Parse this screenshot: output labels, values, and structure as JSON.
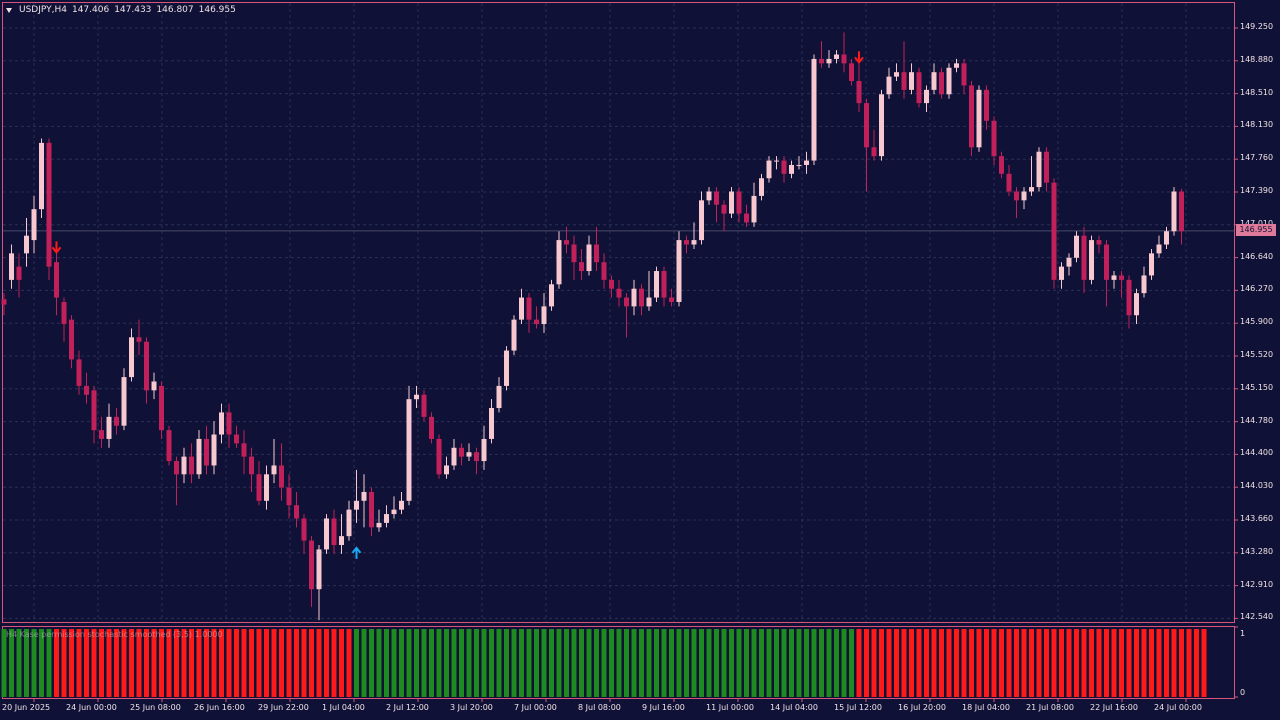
{
  "header": {
    "symbol": "USDJPY,H4",
    "open": "147.406",
    "high": "147.433",
    "low": "146.807",
    "close": "146.955"
  },
  "current_price": "146.955",
  "price_axis": [
    "149.250",
    "148.880",
    "148.510",
    "148.130",
    "147.760",
    "147.390",
    "147.010",
    "146.640",
    "146.270",
    "145.900",
    "145.520",
    "145.150",
    "144.780",
    "144.400",
    "144.030",
    "143.660",
    "143.280",
    "142.910",
    "142.540"
  ],
  "time_axis": [
    "20 Jun 2025",
    "24 Jun 00:00",
    "25 Jun 08:00",
    "26 Jun 16:00",
    "29 Jun 22:00",
    "1 Jul 04:00",
    "2 Jul 12:00",
    "3 Jul 20:00",
    "7 Jul 00:00",
    "8 Jul 08:00",
    "9 Jul 16:00",
    "11 Jul 00:00",
    "14 Jul 04:00",
    "15 Jul 12:00",
    "16 Jul 20:00",
    "18 Jul 04:00",
    "21 Jul 08:00",
    "22 Jul 16:00",
    "24 Jul 00:00"
  ],
  "indicator": {
    "title": "H4 Kase permission stochastic smoothed (3,5) 1.0000",
    "scale_max": "1",
    "scale_min": "0"
  },
  "colors": {
    "bull": "#f7c8cf",
    "bear": "#c2205a",
    "frame": "#d6557d",
    "background": "#0f1236",
    "signal_up": "#1ea7f0",
    "signal_down": "#ff1a1a",
    "osc_red": "#ff1a1a",
    "osc_green": "#1f8a1f"
  },
  "chart_data": {
    "type": "candlestick",
    "ylim": [
      142.54,
      149.25
    ],
    "candles": [
      [
        146.18,
        146.12,
        146.0,
        146.25
      ],
      [
        146.4,
        146.7,
        146.3,
        146.8
      ],
      [
        146.55,
        146.4,
        146.2,
        146.7
      ],
      [
        146.7,
        146.9,
        146.55,
        147.1
      ],
      [
        146.85,
        147.2,
        146.7,
        147.35
      ],
      [
        147.2,
        147.95,
        147.1,
        148.0
      ],
      [
        147.95,
        146.55,
        146.4,
        148.0
      ],
      [
        146.6,
        146.2,
        146.0,
        146.7
      ],
      [
        146.15,
        145.9,
        145.7,
        146.2
      ],
      [
        145.95,
        145.5,
        145.4,
        146.0
      ],
      [
        145.5,
        145.2,
        145.1,
        145.6
      ],
      [
        145.2,
        145.1,
        145.0,
        145.35
      ],
      [
        145.15,
        144.7,
        144.55,
        145.2
      ],
      [
        144.7,
        144.6,
        144.5,
        144.85
      ],
      [
        144.6,
        144.85,
        144.5,
        145.0
      ],
      [
        144.85,
        144.75,
        144.65,
        144.95
      ],
      [
        144.75,
        145.3,
        144.7,
        145.4
      ],
      [
        145.3,
        145.75,
        145.25,
        145.85
      ],
      [
        145.75,
        145.7,
        145.55,
        145.95
      ],
      [
        145.7,
        145.15,
        145.0,
        145.75
      ],
      [
        145.15,
        145.25,
        145.05,
        145.35
      ],
      [
        145.2,
        144.7,
        144.6,
        145.25
      ],
      [
        144.7,
        144.35,
        144.3,
        144.75
      ],
      [
        144.35,
        144.2,
        143.85,
        144.4
      ],
      [
        144.2,
        144.4,
        144.1,
        144.5
      ],
      [
        144.4,
        144.2,
        144.1,
        144.55
      ],
      [
        144.2,
        144.6,
        144.15,
        144.7
      ],
      [
        144.6,
        144.3,
        144.2,
        144.75
      ],
      [
        144.3,
        144.65,
        144.2,
        144.8
      ],
      [
        144.65,
        144.9,
        144.55,
        145.0
      ],
      [
        144.9,
        144.65,
        144.5,
        145.0
      ],
      [
        144.65,
        144.55,
        144.5,
        144.75
      ],
      [
        144.55,
        144.4,
        144.2,
        144.7
      ],
      [
        144.4,
        144.2,
        144.0,
        144.5
      ],
      [
        144.2,
        143.9,
        143.85,
        144.35
      ],
      [
        143.9,
        144.2,
        143.8,
        144.3
      ],
      [
        144.2,
        144.3,
        144.1,
        144.6
      ],
      [
        144.3,
        144.05,
        143.9,
        144.55
      ],
      [
        144.05,
        143.85,
        143.7,
        144.2
      ],
      [
        143.85,
        143.7,
        143.6,
        144.0
      ],
      [
        143.7,
        143.45,
        143.3,
        143.75
      ],
      [
        143.45,
        142.9,
        142.7,
        143.5
      ],
      [
        142.9,
        143.35,
        142.55,
        143.4
      ],
      [
        143.35,
        143.7,
        143.3,
        143.75
      ],
      [
        143.7,
        143.4,
        143.3,
        143.8
      ],
      [
        143.4,
        143.5,
        143.3,
        143.75
      ],
      [
        143.5,
        143.8,
        143.45,
        143.9
      ],
      [
        143.8,
        143.9,
        143.65,
        144.25
      ],
      [
        143.9,
        144.0,
        143.6,
        144.2
      ],
      [
        144.0,
        143.6,
        143.5,
        144.05
      ],
      [
        143.6,
        143.65,
        143.55,
        143.8
      ],
      [
        143.65,
        143.75,
        143.6,
        143.85
      ],
      [
        143.75,
        143.8,
        143.7,
        143.95
      ],
      [
        143.8,
        143.9,
        143.75,
        144.0
      ],
      [
        143.9,
        145.05,
        143.85,
        145.2
      ],
      [
        145.05,
        145.1,
        144.95,
        145.2
      ],
      [
        145.1,
        144.85,
        144.8,
        145.15
      ],
      [
        144.85,
        144.6,
        144.55,
        144.9
      ],
      [
        144.6,
        144.2,
        144.15,
        144.65
      ],
      [
        144.2,
        144.3,
        144.15,
        144.4
      ],
      [
        144.3,
        144.5,
        144.25,
        144.6
      ],
      [
        144.5,
        144.4,
        144.3,
        144.55
      ],
      [
        144.4,
        144.45,
        144.35,
        144.55
      ],
      [
        144.45,
        144.35,
        144.2,
        144.5
      ],
      [
        144.35,
        144.6,
        144.25,
        144.75
      ],
      [
        144.6,
        144.95,
        144.55,
        145.05
      ],
      [
        144.95,
        145.2,
        144.9,
        145.3
      ],
      [
        145.2,
        145.6,
        145.15,
        145.65
      ],
      [
        145.6,
        145.95,
        145.55,
        146.0
      ],
      [
        145.95,
        146.2,
        145.9,
        146.3
      ],
      [
        146.2,
        145.95,
        145.8,
        146.25
      ],
      [
        145.95,
        145.9,
        145.85,
        146.1
      ],
      [
        145.9,
        146.1,
        145.8,
        146.25
      ],
      [
        146.1,
        146.35,
        146.05,
        146.4
      ],
      [
        146.35,
        146.85,
        146.3,
        146.95
      ],
      [
        146.85,
        146.8,
        146.7,
        147.0
      ],
      [
        146.8,
        146.6,
        146.4,
        146.9
      ],
      [
        146.6,
        146.5,
        146.4,
        146.75
      ],
      [
        146.5,
        146.8,
        146.45,
        146.9
      ],
      [
        146.8,
        146.6,
        146.5,
        147.0
      ],
      [
        146.6,
        146.4,
        146.3,
        146.7
      ],
      [
        146.4,
        146.3,
        146.2,
        146.45
      ],
      [
        146.3,
        146.2,
        146.1,
        146.4
      ],
      [
        146.2,
        146.1,
        145.75,
        146.25
      ],
      [
        146.1,
        146.3,
        146.0,
        146.4
      ],
      [
        146.3,
        146.1,
        146.0,
        146.35
      ],
      [
        146.1,
        146.2,
        146.05,
        146.5
      ],
      [
        146.2,
        146.5,
        146.15,
        146.55
      ],
      [
        146.5,
        146.2,
        146.1,
        146.55
      ],
      [
        146.2,
        146.15,
        146.1,
        146.3
      ],
      [
        146.15,
        146.85,
        146.1,
        146.95
      ],
      [
        146.85,
        146.8,
        146.7,
        146.9
      ],
      [
        146.8,
        146.85,
        146.75,
        147.05
      ],
      [
        146.85,
        147.3,
        146.8,
        147.4
      ],
      [
        147.3,
        147.4,
        147.25,
        147.45
      ],
      [
        147.4,
        147.25,
        147.05,
        147.45
      ],
      [
        147.25,
        147.15,
        146.95,
        147.3
      ],
      [
        147.15,
        147.4,
        147.1,
        147.45
      ],
      [
        147.4,
        147.15,
        147.05,
        147.45
      ],
      [
        147.15,
        147.05,
        147.0,
        147.25
      ],
      [
        147.05,
        147.35,
        147.0,
        147.5
      ],
      [
        147.35,
        147.55,
        147.3,
        147.6
      ],
      [
        147.55,
        147.75,
        147.5,
        147.8
      ],
      [
        147.75,
        147.75,
        147.65,
        147.8
      ],
      [
        147.75,
        147.6,
        147.5,
        147.8
      ],
      [
        147.6,
        147.7,
        147.55,
        147.75
      ],
      [
        147.7,
        147.7,
        147.65,
        147.8
      ],
      [
        147.7,
        147.75,
        147.6,
        147.85
      ],
      [
        147.75,
        148.9,
        147.7,
        148.95
      ],
      [
        148.9,
        148.85,
        148.8,
        149.1
      ],
      [
        148.85,
        148.9,
        148.8,
        149.0
      ],
      [
        148.9,
        148.95,
        148.85,
        149.0
      ],
      [
        148.95,
        148.85,
        148.75,
        149.2
      ],
      [
        148.85,
        148.65,
        148.6,
        148.9
      ],
      [
        148.65,
        148.4,
        148.3,
        148.85
      ],
      [
        148.4,
        147.9,
        147.4,
        148.45
      ],
      [
        147.9,
        147.8,
        147.75,
        148.1
      ],
      [
        147.8,
        148.5,
        147.75,
        148.55
      ],
      [
        148.5,
        148.7,
        148.45,
        148.8
      ],
      [
        148.7,
        148.75,
        148.65,
        148.85
      ],
      [
        148.75,
        148.55,
        148.45,
        149.1
      ],
      [
        148.55,
        148.75,
        148.5,
        148.85
      ],
      [
        148.75,
        148.4,
        148.35,
        148.8
      ],
      [
        148.4,
        148.55,
        148.3,
        148.6
      ],
      [
        148.55,
        148.75,
        148.5,
        148.85
      ],
      [
        148.75,
        148.5,
        148.45,
        148.8
      ],
      [
        148.5,
        148.8,
        148.45,
        148.85
      ],
      [
        148.8,
        148.85,
        148.75,
        148.9
      ],
      [
        148.85,
        148.6,
        148.5,
        148.9
      ],
      [
        148.6,
        147.9,
        147.8,
        148.65
      ],
      [
        147.9,
        148.55,
        147.85,
        148.6
      ],
      [
        148.55,
        148.2,
        148.1,
        148.6
      ],
      [
        148.2,
        147.8,
        147.7,
        148.25
      ],
      [
        147.8,
        147.6,
        147.55,
        147.85
      ],
      [
        147.6,
        147.4,
        147.35,
        147.7
      ],
      [
        147.4,
        147.3,
        147.1,
        147.45
      ],
      [
        147.3,
        147.4,
        147.2,
        147.45
      ],
      [
        147.4,
        147.45,
        147.35,
        147.8
      ],
      [
        147.45,
        147.85,
        147.4,
        147.9
      ],
      [
        147.85,
        147.5,
        147.4,
        147.9
      ],
      [
        147.5,
        146.4,
        146.3,
        147.55
      ],
      [
        146.4,
        146.55,
        146.3,
        146.6
      ],
      [
        146.55,
        146.65,
        146.45,
        146.7
      ],
      [
        146.65,
        146.9,
        146.6,
        146.95
      ],
      [
        146.9,
        146.4,
        146.25,
        147.0
      ],
      [
        146.4,
        146.85,
        146.35,
        146.9
      ],
      [
        146.85,
        146.8,
        146.7,
        146.9
      ],
      [
        146.8,
        146.4,
        146.1,
        146.85
      ],
      [
        146.4,
        146.45,
        146.3,
        146.5
      ],
      [
        146.45,
        146.4,
        146.2,
        146.5
      ],
      [
        146.4,
        146.0,
        145.85,
        146.45
      ],
      [
        146.0,
        146.25,
        145.9,
        146.3
      ],
      [
        146.25,
        146.45,
        146.2,
        146.55
      ],
      [
        146.45,
        146.7,
        146.4,
        146.75
      ],
      [
        146.7,
        146.8,
        146.65,
        146.9
      ],
      [
        146.8,
        146.95,
        146.75,
        147.0
      ],
      [
        146.95,
        147.4,
        146.9,
        147.45
      ],
      [
        147.4,
        146.95,
        146.8,
        147.43
      ]
    ],
    "signals": [
      {
        "type": "down",
        "index": 7
      },
      {
        "type": "up",
        "index": 47
      },
      {
        "type": "down",
        "index": 114
      }
    ],
    "oscillator": {
      "ylim": [
        0,
        1
      ],
      "segments": [
        {
          "from": 0,
          "to": 6,
          "color": "green"
        },
        {
          "from": 7,
          "to": 46,
          "color": "red"
        },
        {
          "from": 47,
          "to": 113,
          "color": "green"
        },
        {
          "from": 114,
          "to": 160,
          "color": "red"
        }
      ]
    }
  }
}
